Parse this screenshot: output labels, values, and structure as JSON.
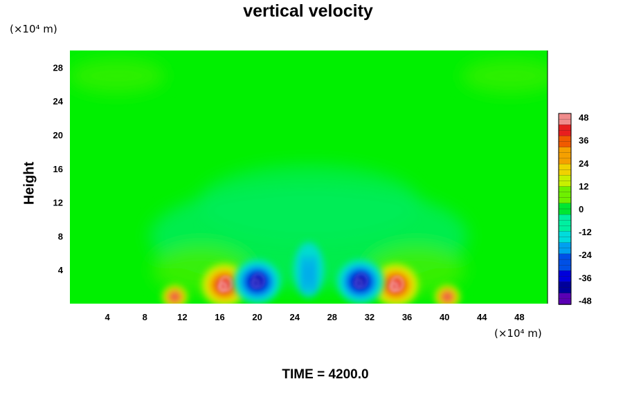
{
  "chart_data": {
    "type": "heatmap",
    "title": "vertical velocity",
    "ylabel": "Height",
    "x_unit": "(×10⁴ m)",
    "y_unit": "(×10⁴ m)",
    "x_ticks": [
      "4",
      "8",
      "12",
      "16",
      "20",
      "24",
      "28",
      "32",
      "36",
      "40",
      "44",
      "48"
    ],
    "y_ticks": [
      "4",
      "8",
      "12",
      "16",
      "20",
      "24",
      "28"
    ],
    "xlim": [
      0,
      51
    ],
    "ylim": [
      0,
      30
    ],
    "time_label": "TIME = 4200.0",
    "colorbar": {
      "range": [
        -50,
        50
      ],
      "ticks": [
        "48",
        "36",
        "24",
        "12",
        "0",
        "-12",
        "-24",
        "-36",
        "-48"
      ],
      "tick_values": [
        48,
        36,
        24,
        12,
        0,
        -12,
        -24,
        -36,
        -48
      ],
      "colors": [
        "#f08c8c",
        "#e81e1e",
        "#f05a00",
        "#f5a000",
        "#f0d200",
        "#c8f000",
        "#6ef000",
        "#00e632",
        "#00f0a0",
        "#00dcdc",
        "#00a0f0",
        "#0050e6",
        "#0000dc",
        "#00009b",
        "#5a00b4"
      ]
    },
    "features": [
      {
        "kind": "updraft",
        "x": 16.5,
        "y": 2.2,
        "peak": 48
      },
      {
        "kind": "updraft",
        "x": 34.8,
        "y": 2.2,
        "peak": 48
      },
      {
        "kind": "downdraft",
        "x": 20.0,
        "y": 2.6,
        "peak": -40
      },
      {
        "kind": "downdraft",
        "x": 31.0,
        "y": 2.6,
        "peak": -40
      },
      {
        "kind": "updraft",
        "x": 11.2,
        "y": 0.8,
        "peak": 30
      },
      {
        "kind": "updraft",
        "x": 40.3,
        "y": 0.8,
        "peak": 30
      },
      {
        "kind": "downdraft",
        "x": 25.5,
        "y": 4.5,
        "peak": -18
      }
    ]
  }
}
